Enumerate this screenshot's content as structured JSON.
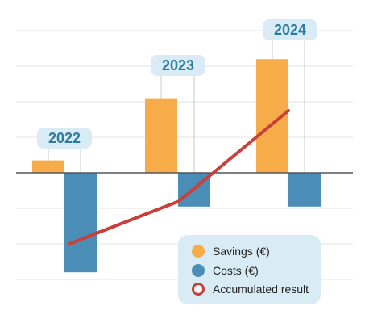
{
  "colors": {
    "savings": "#F7AC4A",
    "costs": "#4A8DB6",
    "accumulated": "#C9403A",
    "badge_bg": "#D9ECF5",
    "badge_text": "#2C7BA3",
    "axis": "#555555",
    "grid": "#E3E3E3",
    "legend_bg": "#D9ECF5",
    "legend_text": "#222222"
  },
  "chart_data": {
    "type": "bar",
    "categories": [
      "2022",
      "2023",
      "2024"
    ],
    "series": [
      {
        "name": "Savings (€)",
        "type": "bar",
        "values": [
          0.7,
          4.2,
          6.4
        ]
      },
      {
        "name": "Costs (€)",
        "type": "bar",
        "values": [
          -5.6,
          -1.9,
          -1.9
        ]
      },
      {
        "name": "Accumulated result",
        "type": "line",
        "values": [
          -4.0,
          -1.6,
          3.5
        ]
      }
    ],
    "title": "",
    "xlabel": "",
    "ylabel": "",
    "ylim": [
      -6.5,
      8.5
    ],
    "grid": true,
    "legend": "bottom-right"
  }
}
